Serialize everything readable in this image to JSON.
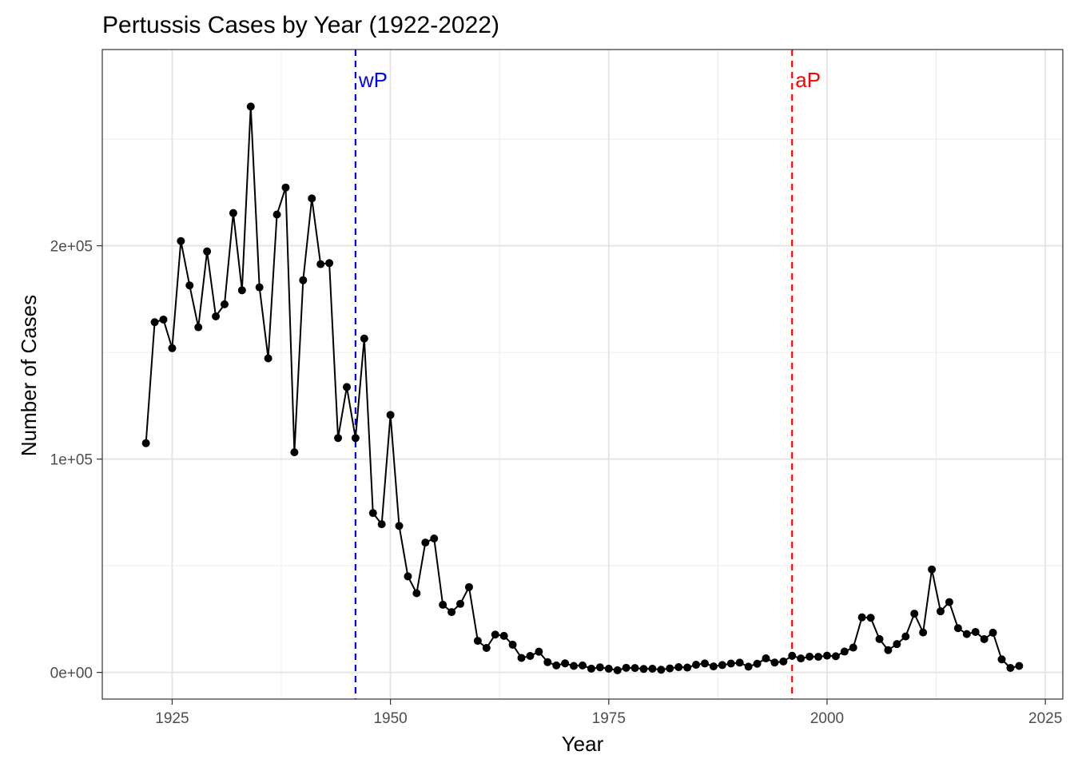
{
  "chart_data": {
    "type": "line",
    "title": "Pertussis Cases by Year (1922-2022)",
    "xlabel": "Year",
    "ylabel": "Number of Cases",
    "xlim": [
      1917,
      2027
    ],
    "ylim": [
      -12500,
      292000
    ],
    "x_ticks": [
      1925,
      1950,
      1975,
      2000,
      2025
    ],
    "x_tick_labels": [
      "1925",
      "1950",
      "1975",
      "2000",
      "2025"
    ],
    "x_minor_ticks": [
      1937.5,
      1962.5,
      1987.5,
      2012.5
    ],
    "y_ticks": [
      0,
      100000,
      200000
    ],
    "y_tick_labels": [
      "0e+00",
      "1e+05",
      "2e+05"
    ],
    "y_minor_ticks": [
      50000,
      150000,
      250000
    ],
    "grid": true,
    "markers": true,
    "series": [
      {
        "color": "#000000",
        "x": [
          1922,
          1923,
          1924,
          1925,
          1926,
          1927,
          1928,
          1929,
          1930,
          1931,
          1932,
          1933,
          1934,
          1935,
          1936,
          1937,
          1938,
          1939,
          1940,
          1941,
          1942,
          1943,
          1944,
          1945,
          1946,
          1947,
          1948,
          1949,
          1950,
          1951,
          1952,
          1953,
          1954,
          1955,
          1956,
          1957,
          1958,
          1959,
          1960,
          1961,
          1962,
          1963,
          1964,
          1965,
          1966,
          1967,
          1968,
          1969,
          1970,
          1971,
          1972,
          1973,
          1974,
          1975,
          1976,
          1977,
          1978,
          1979,
          1980,
          1981,
          1982,
          1983,
          1984,
          1985,
          1986,
          1987,
          1988,
          1989,
          1990,
          1991,
          1992,
          1993,
          1994,
          1995,
          1996,
          1997,
          1998,
          1999,
          2000,
          2001,
          2002,
          2003,
          2004,
          2005,
          2006,
          2007,
          2008,
          2009,
          2010,
          2011,
          2012,
          2013,
          2014,
          2015,
          2016,
          2017,
          2018,
          2019,
          2020,
          2021,
          2022
        ],
        "y": [
          107473,
          164191,
          165418,
          152003,
          202210,
          181411,
          161799,
          197371,
          166914,
          172559,
          215343,
          179135,
          265269,
          180518,
          147237,
          214652,
          227319,
          103188,
          183866,
          222202,
          191383,
          191890,
          109873,
          133792,
          109860,
          156517,
          74715,
          69479,
          120718,
          68687,
          45030,
          37129,
          60886,
          62786,
          31732,
          28295,
          32148,
          40005,
          14809,
          11468,
          17749,
          17135,
          13005,
          6799,
          7717,
          9718,
          4810,
          3285,
          4249,
          3036,
          3287,
          1759,
          2402,
          1738,
          1010,
          2177,
          2063,
          1623,
          1730,
          1248,
          1895,
          2463,
          2276,
          3589,
          4195,
          2823,
          3450,
          4157,
          4570,
          2719,
          4083,
          6586,
          4617,
          5137,
          7796,
          6564,
          7405,
          7298,
          7867,
          7580,
          9771,
          11647,
          25827,
          25616,
          15632,
          10454,
          13278,
          16858,
          27550,
          18719,
          48277,
          28639,
          32971,
          20762,
          17972,
          18975,
          15609,
          18617,
          6124,
          2116,
          3044
        ]
      }
    ],
    "reference_lines": [
      {
        "x": 1946,
        "label": "wP",
        "color": "#0000ff"
      },
      {
        "x": 1996,
        "label": "aP",
        "color": "#ff0000"
      }
    ]
  }
}
